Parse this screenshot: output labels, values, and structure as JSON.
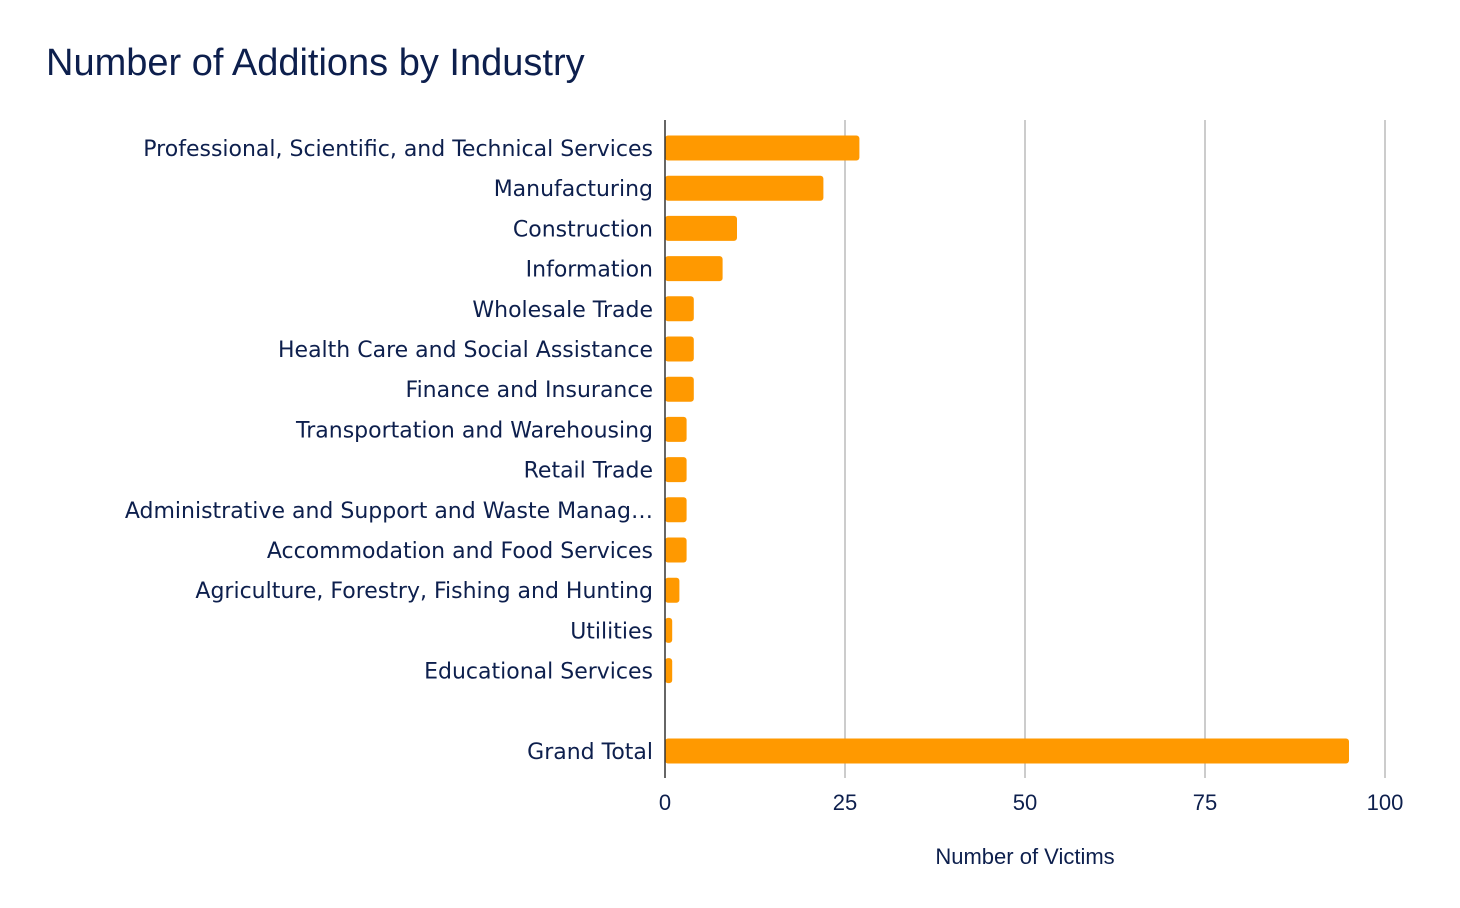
{
  "chart_data": {
    "type": "bar",
    "orientation": "horizontal",
    "title": "Number of Additions by Industry",
    "xlabel": "Number of Victims",
    "ylabel": "",
    "xlim": [
      0,
      100
    ],
    "xticks": [
      0,
      25,
      50,
      75,
      100
    ],
    "grid": true,
    "legend": "none",
    "bar_color": "#ff9900",
    "text_color": "#0d1f4d",
    "categories": [
      "Professional, Scientific, and Technical Services",
      "Manufacturing",
      "Construction",
      "Information",
      "Wholesale Trade",
      "Health Care and Social Assistance",
      "Finance and Insurance",
      "Transportation and Warehousing",
      "Retail Trade",
      "Administrative and Support and Waste Manag…",
      "Accommodation and Food Services",
      "Agriculture, Forestry, Fishing and Hunting",
      "Utilities",
      "Educational Services",
      "",
      "Grand Total"
    ],
    "values": [
      27,
      22,
      10,
      8,
      4,
      4,
      4,
      3,
      3,
      3,
      3,
      2,
      1,
      1,
      null,
      95
    ]
  }
}
